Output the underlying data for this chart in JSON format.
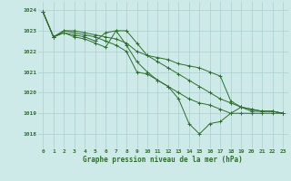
{
  "title": "Graphe pression niveau de la mer (hPa)",
  "bg_color": "#ceeae8",
  "grid_color": "#aacfcf",
  "line_color": "#2d6e2d",
  "ylim": [
    1017.3,
    1024.4
  ],
  "xlim": [
    -0.5,
    23.5
  ],
  "yticks": [
    1018,
    1019,
    1020,
    1021,
    1022,
    1023,
    1024
  ],
  "xticks": [
    0,
    1,
    2,
    3,
    4,
    5,
    6,
    7,
    8,
    9,
    10,
    11,
    12,
    13,
    14,
    15,
    16,
    17,
    18,
    19,
    20,
    21,
    22,
    23
  ],
  "series": [
    [
      1023.9,
      1022.7,
      1022.9,
      1022.8,
      1022.7,
      1022.5,
      1022.9,
      1023.0,
      1023.0,
      1022.4,
      1021.8,
      1021.7,
      1021.6,
      1021.4,
      1021.3,
      1021.2,
      1021.0,
      1020.8,
      1019.6,
      1019.3,
      1019.2,
      1019.1,
      1019.1,
      1019.0
    ],
    [
      1023.9,
      1022.7,
      1023.0,
      1022.9,
      1022.8,
      1022.7,
      1022.5,
      1022.3,
      1022.0,
      1021.0,
      1020.9,
      1020.6,
      1020.3,
      1020.0,
      1019.7,
      1019.5,
      1019.4,
      1019.2,
      1019.0,
      1019.0,
      1019.0,
      1019.0,
      1019.0,
      1019.0
    ],
    [
      1023.9,
      1022.7,
      1023.0,
      1023.0,
      1022.9,
      1022.8,
      1022.7,
      1022.6,
      1022.4,
      1022.0,
      1021.8,
      1021.5,
      1021.2,
      1020.9,
      1020.6,
      1020.3,
      1020.0,
      1019.7,
      1019.5,
      1019.3,
      1019.2,
      1019.1,
      1019.1,
      1019.0
    ],
    [
      1023.9,
      1022.7,
      1022.9,
      1022.7,
      1022.6,
      1022.4,
      1022.2,
      1023.0,
      1022.3,
      1021.5,
      1021.0,
      1020.6,
      1020.3,
      1019.7,
      1018.5,
      1018.0,
      1018.5,
      1018.6,
      1019.0,
      1019.3,
      1019.1,
      1019.1,
      1019.1,
      1019.0
    ]
  ]
}
